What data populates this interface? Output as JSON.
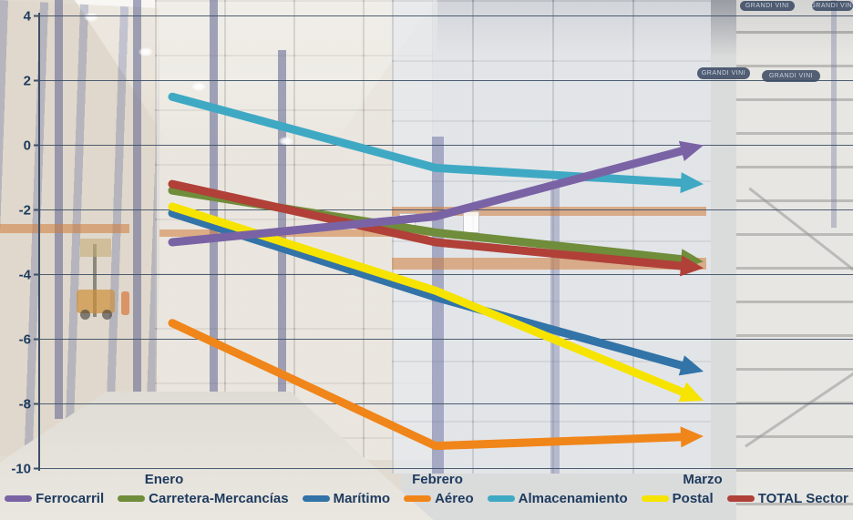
{
  "background": {
    "box_label": "GRANDI VINI"
  },
  "styles": {
    "axis_color": "#3d4f66",
    "label_color": "#1d3a5e"
  },
  "chart_data": {
    "type": "line",
    "title": "",
    "xlabel": "",
    "ylabel": "",
    "categories": [
      "Enero",
      "Febrero",
      "Marzo"
    ],
    "y_axis": {
      "min": -10,
      "max": 4,
      "step": 2,
      "ticks": [
        4,
        2,
        0,
        -2,
        -4,
        -6,
        -8,
        -10
      ]
    },
    "grid": true,
    "legend_position": "bottom",
    "line_style": "thick arrow-tipped segments",
    "series": [
      {
        "name": "Ferrocarril",
        "color": "#7a63a5",
        "values": [
          -3.0,
          -2.2,
          0.0
        ],
        "z": 6
      },
      {
        "name": "Carretera-Mercancías",
        "color": "#6f8d3a",
        "values": [
          -1.4,
          -2.7,
          -3.6
        ],
        "z": 1
      },
      {
        "name": "Marítimo",
        "color": "#3273a8",
        "values": [
          -2.1,
          -4.7,
          -7.0
        ],
        "z": 0
      },
      {
        "name": "Aéreo",
        "color": "#f08519",
        "values": [
          -5.5,
          -9.3,
          -9.0
        ],
        "z": 3
      },
      {
        "name": "Almacenamiento",
        "color": "#3fa9c4",
        "values": [
          1.5,
          -0.7,
          -1.2
        ],
        "z": 4
      },
      {
        "name": "Postal",
        "color": "#f6e400",
        "values": [
          -1.9,
          -4.5,
          -7.9
        ],
        "z": 5
      },
      {
        "name": "TOTAL Sector",
        "color": "#b04038",
        "values": [
          -1.2,
          -3.0,
          -3.8
        ],
        "z": 2
      }
    ]
  }
}
